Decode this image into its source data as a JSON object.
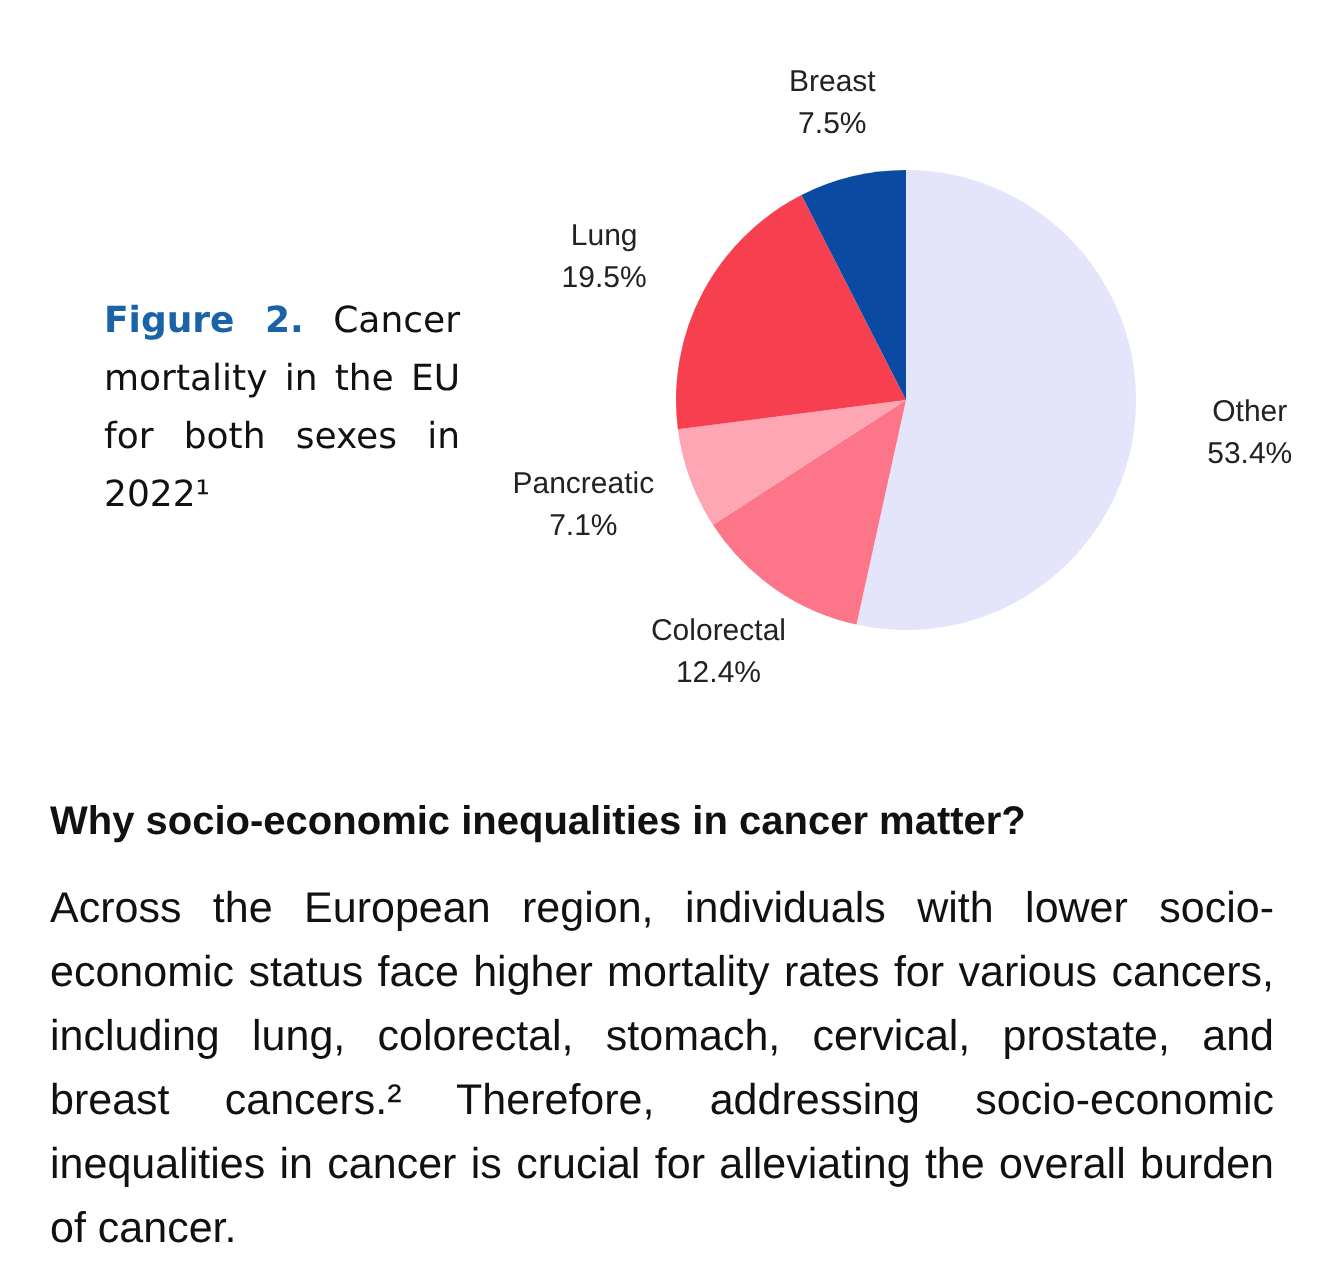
{
  "chart_data": {
    "type": "pie",
    "title": "Figure 2. Cancer mortality in the EU for both sexes in 2022¹",
    "categories": [
      "Other",
      "Colorectal",
      "Pancreatic",
      "Lung",
      "Breast"
    ],
    "values": [
      53.4,
      12.4,
      7.1,
      19.5,
      7.5
    ],
    "colors": [
      "#e4e4fa",
      "#fd7588",
      "#ffa6b4",
      "#f6404f",
      "#0a4aa3"
    ],
    "value_labels": [
      "53.4%",
      "12.4%",
      "7.1%",
      "19.5%",
      "7.5%"
    ],
    "legend": false,
    "annotations": [
      "Why socio-economic inequalities in cancer matter?",
      "Across the European region, individuals with lower socio-economic status face higher mortality rates for various cancers, including lung, colorectal, stomach, cervical, prostate, and breast cancers.² Therefore, addressing socio-economic inequalities in cancer is crucial for alleviating the overall burden of cancer."
    ]
  }
}
